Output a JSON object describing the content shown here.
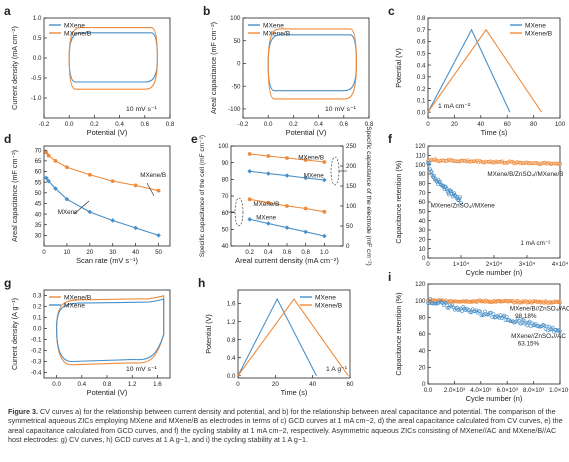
{
  "colors": {
    "blue": "#4a90c8",
    "orange": "#ef8a3a",
    "axis": "#222222"
  },
  "caption": {
    "label": "Figure 3.",
    "text": "CV curves a) for the relationship between current density and potential, and b) for the relationship between areal capacitance and potential. The comparison of the symmetrical aqueous ZICs employing MXene and MXene/B as electrodes in terms of c) GCD curves at 1 mA cm−2, d) the areal capacitance calculated from CV curves, e) the areal capacitance calculated from GCD curves, and f) the cycling stability at 1 mA cm−2, respectively. Asymmetric aqueous ZICs consisting of MXene//AC and MXene/B//AC host electrodes: g) CV curves, h) GCD curves at 1 A g−1, and i) the cycling stability at 1 A g−1."
  },
  "chart_data": [
    {
      "panel": "a",
      "type": "line",
      "xlabel": "Potential (V)",
      "ylabel": "Current density (mA cm⁻²)",
      "xlim": [
        -0.2,
        0.8
      ],
      "ylim": [
        -1.5,
        1.0
      ],
      "xticks": [
        -0.2,
        0.0,
        0.2,
        0.4,
        0.6,
        0.8
      ],
      "xticklabels": [
        "-0.2",
        "0.0",
        "0.2",
        "0.4",
        "0.6",
        "0.8"
      ],
      "yticks": [
        -1.0,
        -0.5,
        0.0,
        0.5,
        1.0
      ],
      "yticklabels": [
        "-1.0",
        "-0.5",
        "0.0",
        "0.5",
        "1.0"
      ],
      "legend": [
        "MXene",
        "MXene/B"
      ],
      "legend_loc": "top-left",
      "annotation": "10 mV s⁻¹",
      "series": [
        {
          "name": "MXene",
          "color": "blue",
          "shape": "cv",
          "x": [
            0.0,
            0.7
          ],
          "upper": 0.63,
          "lower": -0.6
        },
        {
          "name": "MXene/B",
          "color": "orange",
          "shape": "cv",
          "x": [
            0.0,
            0.7
          ],
          "upper": 0.76,
          "lower": -0.78
        }
      ]
    },
    {
      "panel": "b",
      "type": "line",
      "xlabel": "Potential (V)",
      "ylabel": "Areal capacitance (mF cm⁻²)",
      "xlim": [
        -0.2,
        0.8
      ],
      "ylim": [
        -120,
        100
      ],
      "xticks": [
        -0.2,
        0.0,
        0.2,
        0.4,
        0.6,
        0.8
      ],
      "xticklabels": [
        "-0.2",
        "0.0",
        "0.2",
        "0.4",
        "0.6",
        "0.8"
      ],
      "yticks": [
        -100,
        -50,
        0,
        50,
        100
      ],
      "yticklabels": [
        "-100",
        "-50",
        "0",
        "50",
        "100"
      ],
      "legend": [
        "MXene",
        "MXene/B"
      ],
      "legend_loc": "top-left",
      "annotation": "10 mV s⁻¹",
      "series": [
        {
          "name": "MXene",
          "color": "blue",
          "shape": "cv",
          "x": [
            0.0,
            0.7
          ],
          "upper": 63,
          "lower": -60
        },
        {
          "name": "MXene/B",
          "color": "orange",
          "shape": "cv",
          "x": [
            0.0,
            0.7
          ],
          "upper": 76,
          "lower": -78
        }
      ]
    },
    {
      "panel": "c",
      "type": "line",
      "xlabel": "Time (s)",
      "ylabel": "Potential (V)",
      "xlim": [
        0,
        100
      ],
      "ylim": [
        -0.05,
        0.8
      ],
      "xticks": [
        0,
        20,
        40,
        60,
        80,
        100
      ],
      "xticklabels": [
        "0",
        "20",
        "40",
        "60",
        "80",
        "100"
      ],
      "yticks": [
        0.0,
        0.1,
        0.2,
        0.3,
        0.4,
        0.5,
        0.6,
        0.7,
        0.8
      ],
      "yticklabels": [
        "0.0",
        "0.1",
        "0.2",
        "0.3",
        "0.4",
        "0.5",
        "0.6",
        "0.7",
        "0.8"
      ],
      "legend": [
        "MXene",
        "MXene/B"
      ],
      "legend_loc": "top-right",
      "annotation": "1 mA cm⁻²",
      "series": [
        {
          "name": "MXene",
          "color": "blue",
          "x": [
            0,
            33,
            62
          ],
          "y": [
            0.0,
            0.7,
            0.0
          ]
        },
        {
          "name": "MXene/B",
          "color": "orange",
          "x": [
            0,
            44,
            86
          ],
          "y": [
            0.0,
            0.7,
            0.0
          ]
        }
      ]
    },
    {
      "panel": "d",
      "type": "line",
      "xlabel": "Scan rate (mV s⁻¹)",
      "ylabel": "Areal capacitance (mF cm⁻²)",
      "xlim": [
        0,
        55
      ],
      "ylim": [
        25,
        72
      ],
      "xticks": [
        0,
        10,
        20,
        30,
        40,
        50
      ],
      "xticklabels": [
        "0",
        "10",
        "20",
        "30",
        "40",
        "50"
      ],
      "yticks": [
        30,
        35,
        40,
        45,
        50,
        55,
        60,
        65,
        70
      ],
      "yticklabels": [
        "30",
        "35",
        "40",
        "45",
        "50",
        "55",
        "60",
        "65",
        "70"
      ],
      "labels": [
        {
          "text": "MXene/B",
          "x": 42,
          "y": 57.5
        },
        {
          "text": "MXene",
          "x": 6,
          "y": 40
        }
      ],
      "series": [
        {
          "name": "MXene/B",
          "color": "orange",
          "marker": "circle",
          "x": [
            1,
            2,
            5,
            10,
            20,
            30,
            40,
            50
          ],
          "y": [
            69,
            67.5,
            65,
            62,
            58.5,
            55.5,
            53.5,
            51
          ]
        },
        {
          "name": "MXene",
          "color": "blue",
          "marker": "diamond",
          "x": [
            1,
            2,
            5,
            10,
            20,
            30,
            40,
            50
          ],
          "y": [
            57,
            55.5,
            52,
            47,
            41,
            37,
            33.5,
            30
          ]
        }
      ]
    },
    {
      "panel": "e",
      "type": "line",
      "xlabel": "Areal current density (mA cm⁻²)",
      "ylabel": "Specific capacitance of the cell (mF cm⁻²)",
      "ylabel_right": "Specific capacitance of the electrode (mF cm⁻²)",
      "xlim": [
        0,
        1.2
      ],
      "ylim": [
        40,
        100
      ],
      "ylim_right": [
        0,
        250
      ],
      "xticks": [
        0.2,
        0.4,
        0.6,
        0.8,
        1.0
      ],
      "xticklabels": [
        "0.2",
        "0.4",
        "0.6",
        "0.8",
        "1.0"
      ],
      "yticks": [
        40,
        50,
        60,
        70,
        80,
        90,
        100
      ],
      "yticklabels": [
        "40",
        "50",
        "60",
        "70",
        "80",
        "90",
        "100"
      ],
      "yticks_right": [
        0,
        50,
        100,
        150,
        200,
        250
      ],
      "yticklabels_right": [
        "0",
        "50",
        "100",
        "150",
        "200",
        "250"
      ],
      "labels": [
        {
          "text": "MXene/B",
          "x": 0.72,
          "y": 92
        },
        {
          "text": "MXene",
          "x": 0.78,
          "y": 81
        },
        {
          "text": "MXene/B",
          "x": 0.24,
          "y": 64
        },
        {
          "text": "MXene",
          "x": 0.27,
          "y": 56
        }
      ],
      "series": [
        {
          "name": "MXene/B",
          "color": "orange",
          "marker": "circle",
          "axis": "right",
          "x": [
            0.2,
            0.4,
            0.6,
            0.8,
            1.0
          ],
          "y": [
            230,
            225,
            220,
            215,
            210
          ]
        },
        {
          "name": "MXene",
          "color": "blue",
          "marker": "diamond",
          "axis": "right",
          "x": [
            0.2,
            0.4,
            0.6,
            0.8,
            1.0
          ],
          "y": [
            187,
            181,
            176,
            170,
            165
          ]
        },
        {
          "name": "MXene/B",
          "color": "orange",
          "marker": "circle",
          "axis": "left",
          "x": [
            0.2,
            0.4,
            0.6,
            0.8,
            1.0
          ],
          "y": [
            68,
            66,
            64,
            62.5,
            60.5
          ]
        },
        {
          "name": "MXene",
          "color": "blue",
          "marker": "diamond",
          "axis": "left",
          "x": [
            0.2,
            0.4,
            0.6,
            0.8,
            1.0
          ],
          "y": [
            56,
            53.5,
            51,
            48.5,
            46
          ]
        }
      ]
    },
    {
      "panel": "f",
      "type": "scatter",
      "xlabel": "Cycle number (n)",
      "ylabel": "Capacitance retention (%)",
      "xlim": [
        0,
        40000
      ],
      "ylim": [
        0,
        120
      ],
      "xticks": [
        0,
        10000,
        20000,
        30000,
        40000
      ],
      "xticklabels": [
        "0",
        "1×10⁴",
        "2×10⁴",
        "3×10⁴",
        "4×10⁴"
      ],
      "yticks": [
        0,
        10,
        20,
        30,
        40,
        50,
        60,
        70,
        80,
        90,
        100,
        110,
        120
      ],
      "yticklabels": [
        "0",
        "10",
        "20",
        "30",
        "40",
        "50",
        "60",
        "70",
        "80",
        "90",
        "100",
        "110",
        "120"
      ],
      "labels": [
        {
          "text": "MXene/B/ZnSO₄//MXene/B",
          "x": 18000,
          "y": 88
        },
        {
          "text": "MXene/ZnSO₄//MXene",
          "x": 800,
          "y": 54
        },
        {
          "text": "1 mA cm⁻²",
          "x": 28000,
          "y": 14
        }
      ],
      "series": [
        {
          "name": "MXene/B/ZnSO₄//MXene/B",
          "color": "orange",
          "x_range": [
            0,
            40000
          ],
          "trend": [
            [
              0,
              105
            ],
            [
              40000,
              101
            ]
          ]
        },
        {
          "name": "MXene/ZnSO₄//MXene",
          "color": "blue",
          "x_range": [
            0,
            10000
          ],
          "trend": [
            [
              0,
              103
            ],
            [
              2000,
              85
            ],
            [
              6000,
              72
            ],
            [
              10000,
              62
            ]
          ]
        }
      ]
    },
    {
      "panel": "g",
      "type": "line",
      "xlabel": "Potential (V)",
      "ylabel": "Current density (A g⁻¹)",
      "xlim": [
        -0.2,
        1.8
      ],
      "ylim": [
        -0.45,
        0.35
      ],
      "xticks": [
        0.0,
        0.4,
        0.8,
        1.2,
        1.6
      ],
      "xticklabels": [
        "0.0",
        "0.4",
        "0.8",
        "1.2",
        "1.6"
      ],
      "yticks": [
        -0.4,
        -0.3,
        -0.2,
        -0.1,
        0.0,
        0.1,
        0.2,
        0.3
      ],
      "yticklabels": [
        "-0.4",
        "-0.3",
        "-0.2",
        "-0.1",
        "0.0",
        "0.1",
        "0.2",
        "0.3"
      ],
      "legend": [
        "MXene/B",
        "MXene"
      ],
      "legend_loc": "top-left",
      "annotation": "10 mV s⁻¹",
      "series": [
        {
          "name": "MXene/B",
          "color": "orange",
          "shape": "cv2",
          "x": [
            0.0,
            1.7
          ],
          "upper": 0.27,
          "lower": -0.33
        },
        {
          "name": "MXene",
          "color": "blue",
          "shape": "cv2",
          "x": [
            0.0,
            1.7
          ],
          "upper": 0.24,
          "lower": -0.3
        }
      ]
    },
    {
      "panel": "h",
      "type": "line",
      "xlabel": "Time (s)",
      "ylabel": "Potential (V)",
      "xlim": [
        0,
        60
      ],
      "ylim": [
        -0.05,
        1.9
      ],
      "xticks": [
        0,
        20,
        40,
        60
      ],
      "xticklabels": [
        "0",
        "20",
        "40",
        "60"
      ],
      "yticks": [
        0.0,
        0.4,
        0.8,
        1.2,
        1.6
      ],
      "yticklabels": [
        "0.0",
        "0.4",
        "0.8",
        "1.2",
        "1.6"
      ],
      "legend": [
        "MXene",
        "MXene/B"
      ],
      "legend_loc": "top-right",
      "annotation": "1 A g⁻¹",
      "series": [
        {
          "name": "MXene",
          "color": "blue",
          "x": [
            0,
            21,
            42
          ],
          "y": [
            0.0,
            1.7,
            0.0
          ]
        },
        {
          "name": "MXene/B",
          "color": "orange",
          "x": [
            0,
            30,
            59
          ],
          "y": [
            0.0,
            1.7,
            0.0
          ]
        }
      ]
    },
    {
      "panel": "i",
      "type": "scatter",
      "xlabel": "Cycle number (n)",
      "ylabel": "Capacitance retention (%)",
      "xlim": [
        0,
        10000
      ],
      "ylim": [
        0,
        120
      ],
      "xticks": [
        0,
        2000,
        4000,
        6000,
        8000,
        10000
      ],
      "xticklabels": [
        "0.0",
        "2.0×10³",
        "4.0×10³",
        "6.0×10³",
        "8.0×10³",
        "1.0×10⁴"
      ],
      "yticks": [
        0,
        20,
        40,
        60,
        80,
        100,
        120
      ],
      "yticklabels": [
        "0",
        "20",
        "40",
        "60",
        "80",
        "100",
        "120"
      ],
      "labels": [
        {
          "text": "MXene/B//ZnSO₄//AC",
          "x": 6200,
          "y": 88
        },
        {
          "text": "98.18%",
          "x": 6600,
          "y": 79
        },
        {
          "text": "MXene//ZnSO₄//AC",
          "x": 6300,
          "y": 55
        },
        {
          "text": "63.15%",
          "x": 6800,
          "y": 46
        }
      ],
      "series": [
        {
          "name": "MXene/B//ZnSO₄//AC",
          "color": "orange",
          "x_range": [
            0,
            10000
          ],
          "trend": [
            [
              0,
              100
            ],
            [
              10000,
              98.18
            ]
          ]
        },
        {
          "name": "MXene//ZnSO₄//AC",
          "color": "blue",
          "x_range": [
            0,
            10000
          ],
          "trend": [
            [
              0,
              100
            ],
            [
              2000,
              92
            ],
            [
              5000,
              82
            ],
            [
              7000,
              75
            ],
            [
              10000,
              63.15
            ]
          ]
        }
      ]
    }
  ]
}
